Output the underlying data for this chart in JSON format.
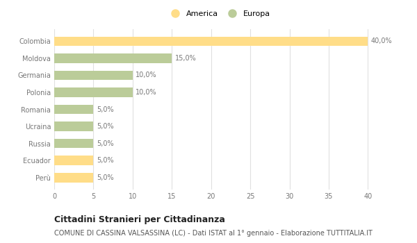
{
  "categories": [
    "Colombia",
    "Moldova",
    "Germania",
    "Polonia",
    "Romania",
    "Ucraina",
    "Russia",
    "Ecuador",
    "Perù"
  ],
  "values": [
    40.0,
    15.0,
    10.0,
    10.0,
    5.0,
    5.0,
    5.0,
    5.0,
    5.0
  ],
  "colors": [
    "#FFDD88",
    "#BBCC99",
    "#BBCC99",
    "#BBCC99",
    "#BBCC99",
    "#BBCC99",
    "#BBCC99",
    "#FFDD88",
    "#FFDD88"
  ],
  "bar_labels": [
    "40,0%",
    "15,0%",
    "10,0%",
    "10,0%",
    "5,0%",
    "5,0%",
    "5,0%",
    "5,0%",
    "5,0%"
  ],
  "xlim": [
    0,
    40
  ],
  "xticks": [
    0,
    5,
    10,
    15,
    20,
    25,
    30,
    35,
    40
  ],
  "legend_items": [
    {
      "label": "America",
      "color": "#FFDD88"
    },
    {
      "label": "Europa",
      "color": "#BBCC99"
    }
  ],
  "title": "Cittadini Stranieri per Cittadinanza",
  "subtitle": "COMUNE DI CASSINA VALSASSINA (LC) - Dati ISTAT al 1° gennaio - Elaborazione TUTTITALIA.IT",
  "background_color": "#ffffff",
  "grid_color": "#e0e0e0",
  "title_fontsize": 9,
  "subtitle_fontsize": 7,
  "label_fontsize": 7,
  "tick_fontsize": 7,
  "legend_fontsize": 8
}
